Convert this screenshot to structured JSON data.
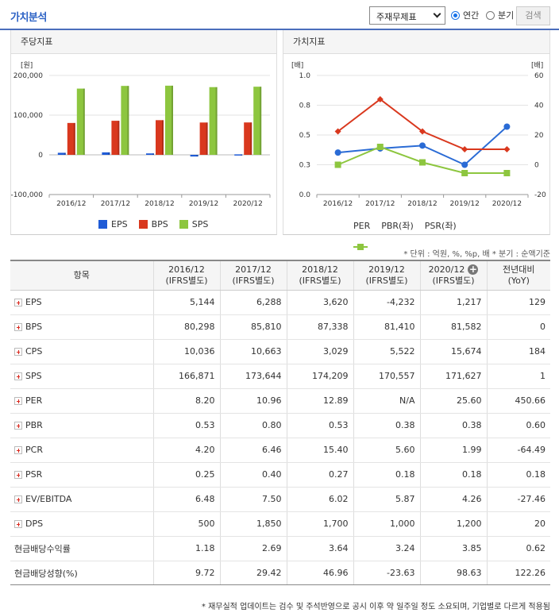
{
  "header": {
    "title": "가치분석",
    "select_value": "주재무제표",
    "radio_annual": "연간",
    "radio_quarter": "분기",
    "search_label": "검색"
  },
  "left_panel": {
    "title": "주당지표"
  },
  "right_panel": {
    "title": "가치지표"
  },
  "chart_data": [
    {
      "type": "bar",
      "title": "주당지표",
      "ylabel": "[원]",
      "categories": [
        "2016/12",
        "2017/12",
        "2018/12",
        "2019/12",
        "2020/12"
      ],
      "series": [
        {
          "name": "EPS",
          "values": [
            5144,
            6288,
            3620,
            -4232,
            1217
          ],
          "color": "#1f5bd6"
        },
        {
          "name": "BPS",
          "values": [
            80298,
            85810,
            87338,
            81410,
            81582
          ],
          "color": "#d9381e"
        },
        {
          "name": "SPS",
          "values": [
            166871,
            173644,
            174209,
            170557,
            171627
          ],
          "color": "#8dc63f"
        }
      ],
      "ylim": [
        -100000,
        200000
      ],
      "yticks": [
        "200,000",
        "100,000",
        "0",
        "-100,000"
      ],
      "grid": true,
      "legend": "bottom"
    },
    {
      "type": "line",
      "title": "가치지표",
      "ylabel_left": "[배]",
      "ylabel_right": "[배]",
      "categories": [
        "2016/12",
        "2017/12",
        "2018/12",
        "2019/12",
        "2020/12"
      ],
      "series": [
        {
          "name": "PER",
          "axis": "right",
          "values": [
            8.2,
            10.96,
            12.89,
            null,
            25.6
          ],
          "color": "#2a6bd5"
        },
        {
          "name": "PBR(좌)",
          "axis": "left",
          "values": [
            0.53,
            0.8,
            0.53,
            0.38,
            0.38
          ],
          "color": "#d9381e"
        },
        {
          "name": "PSR(좌)",
          "axis": "left",
          "values": [
            0.25,
            0.4,
            0.27,
            0.18,
            0.18
          ],
          "color": "#8dc63f"
        }
      ],
      "ylim_left": [
        0.0,
        1.0
      ],
      "yticks_left": [
        "1.0",
        "0.8",
        "0.5",
        "0.3",
        "0.0"
      ],
      "ylim_right": [
        -20,
        60
      ],
      "yticks_right": [
        "60",
        "40",
        "20",
        "0",
        "-20"
      ],
      "grid": true,
      "legend": "bottom"
    }
  ],
  "unit_note": "* 단위 : 억원, %, %p, 배    * 분기 : 순액기준",
  "table": {
    "headers": [
      {
        "l1": "항목",
        "l2": ""
      },
      {
        "l1": "2016/12",
        "l2": "(IFRS별도)"
      },
      {
        "l1": "2017/12",
        "l2": "(IFRS별도)"
      },
      {
        "l1": "2018/12",
        "l2": "(IFRS별도)"
      },
      {
        "l1": "2019/12",
        "l2": "(IFRS별도)"
      },
      {
        "l1": "2020/12",
        "l2": "(IFRS별도)"
      },
      {
        "l1": "전년대비",
        "l2": "(YoY)"
      }
    ],
    "rows": [
      {
        "label": "EPS",
        "expand": true,
        "v": [
          "5,144",
          "6,288",
          "3,620",
          "-4,232",
          "1,217",
          "129"
        ]
      },
      {
        "label": "BPS",
        "expand": true,
        "v": [
          "80,298",
          "85,810",
          "87,338",
          "81,410",
          "81,582",
          "0"
        ]
      },
      {
        "label": "CPS",
        "expand": true,
        "v": [
          "10,036",
          "10,663",
          "3,029",
          "5,522",
          "15,674",
          "184"
        ]
      },
      {
        "label": "SPS",
        "expand": true,
        "v": [
          "166,871",
          "173,644",
          "174,209",
          "170,557",
          "171,627",
          "1"
        ]
      },
      {
        "label": "PER",
        "expand": true,
        "v": [
          "8.20",
          "10.96",
          "12.89",
          "N/A",
          "25.60",
          "450.66"
        ]
      },
      {
        "label": "PBR",
        "expand": true,
        "v": [
          "0.53",
          "0.80",
          "0.53",
          "0.38",
          "0.38",
          "0.60"
        ]
      },
      {
        "label": "PCR",
        "expand": true,
        "v": [
          "4.20",
          "6.46",
          "15.40",
          "5.60",
          "1.99",
          "-64.49"
        ]
      },
      {
        "label": "PSR",
        "expand": true,
        "v": [
          "0.25",
          "0.40",
          "0.27",
          "0.18",
          "0.18",
          "0.18"
        ]
      },
      {
        "label": "EV/EBITDA",
        "expand": true,
        "v": [
          "6.48",
          "7.50",
          "6.02",
          "5.87",
          "4.26",
          "-27.46"
        ]
      },
      {
        "label": "DPS",
        "expand": true,
        "v": [
          "500",
          "1,850",
          "1,700",
          "1,000",
          "1,200",
          "20"
        ]
      },
      {
        "label": "현금배당수익률",
        "expand": false,
        "v": [
          "1.18",
          "2.69",
          "3.64",
          "3.24",
          "3.85",
          "0.62"
        ]
      },
      {
        "label": "현금배당성향(%)",
        "expand": false,
        "v": [
          "9.72",
          "29.42",
          "46.96",
          "-23.63",
          "98.63",
          "122.26"
        ]
      }
    ]
  },
  "footer_note": "* 재무실적 업데이트는 검수 및 주석반영으로 공시 이후 약 일주일 정도 소요되며, 기업별로 다르게 적용됨"
}
